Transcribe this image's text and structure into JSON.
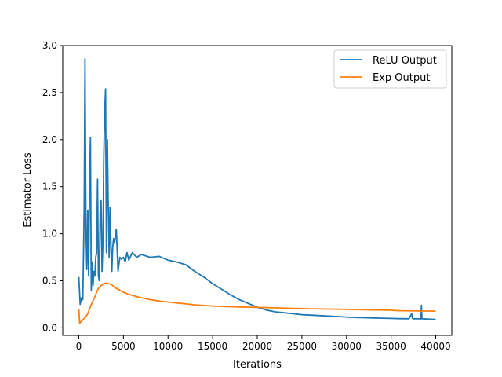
{
  "chart_data": {
    "type": "line",
    "title": "",
    "xlabel": "Iterations",
    "ylabel": "Estimator Loss",
    "xlim": [
      -1800,
      41800
    ],
    "ylim": [
      -0.08,
      3.0
    ],
    "xticks": [
      0,
      5000,
      10000,
      15000,
      20000,
      25000,
      30000,
      35000,
      40000
    ],
    "yticks": [
      0.0,
      0.5,
      1.0,
      1.5,
      2.0,
      2.5,
      3.0
    ],
    "xtick_labels": [
      "0",
      "5000",
      "10000",
      "15000",
      "20000",
      "25000",
      "30000",
      "35000",
      "40000"
    ],
    "ytick_labels": [
      "0.0",
      "0.5",
      "1.0",
      "1.5",
      "2.0",
      "2.5",
      "3.0"
    ],
    "grid": false,
    "legend": {
      "position": "top-right",
      "entries": [
        "ReLU Output",
        "Exp Output"
      ]
    },
    "series": [
      {
        "name": "ReLU Output",
        "color": "#1f77b4",
        "x": [
          0,
          150,
          300,
          450,
          600,
          700,
          800,
          900,
          1000,
          1100,
          1200,
          1300,
          1400,
          1500,
          1600,
          1700,
          1800,
          1900,
          2000,
          2100,
          2200,
          2300,
          2400,
          2500,
          2600,
          2700,
          2800,
          2900,
          3000,
          3100,
          3200,
          3300,
          3400,
          3500,
          3600,
          3700,
          3800,
          3900,
          4000,
          4200,
          4400,
          4600,
          4800,
          5000,
          5200,
          5400,
          5600,
          6000,
          6500,
          7000,
          8000,
          9000,
          10000,
          11000,
          12000,
          13000,
          14000,
          15000,
          16000,
          17000,
          18000,
          19000,
          20000,
          21000,
          22000,
          23000,
          24000,
          25000,
          26000,
          27000,
          28000,
          29000,
          30000,
          31000,
          32000,
          33000,
          34000,
          35000,
          36000,
          37000,
          37300,
          37400,
          37500,
          38000,
          38350,
          38400,
          38450,
          39000,
          40000
        ],
        "y": [
          0.54,
          0.25,
          0.32,
          0.3,
          1.25,
          2.86,
          1.05,
          0.62,
          1.25,
          0.55,
          1.5,
          2.02,
          0.4,
          0.7,
          0.45,
          0.6,
          0.55,
          0.75,
          0.8,
          1.58,
          0.55,
          0.5,
          1.25,
          1.35,
          0.6,
          0.9,
          1.8,
          2.3,
          2.54,
          0.8,
          2.0,
          1.3,
          0.75,
          1.28,
          0.9,
          0.6,
          0.85,
          0.95,
          0.9,
          1.05,
          0.6,
          0.75,
          0.73,
          0.75,
          0.7,
          0.8,
          0.72,
          0.8,
          0.75,
          0.78,
          0.75,
          0.76,
          0.72,
          0.7,
          0.67,
          0.6,
          0.54,
          0.47,
          0.41,
          0.35,
          0.3,
          0.26,
          0.22,
          0.19,
          0.17,
          0.16,
          0.15,
          0.14,
          0.135,
          0.13,
          0.125,
          0.12,
          0.115,
          0.11,
          0.108,
          0.105,
          0.103,
          0.1,
          0.098,
          0.097,
          0.15,
          0.1,
          0.097,
          0.096,
          0.095,
          0.24,
          0.096,
          0.094,
          0.09
        ]
      },
      {
        "name": "Exp Output",
        "color": "#ff7f0e",
        "x": [
          0,
          100,
          200,
          500,
          800,
          1000,
          1200,
          1500,
          1800,
          2000,
          2200,
          2500,
          2800,
          3000,
          3200,
          3500,
          3800,
          4000,
          4500,
          5000,
          5500,
          6000,
          7000,
          8000,
          9000,
          10000,
          11000,
          12000,
          13000,
          14000,
          15000,
          16000,
          17000,
          18000,
          19000,
          20000,
          22000,
          24000,
          26000,
          28000,
          30000,
          32000,
          34000,
          35000,
          36000,
          38000,
          40000
        ],
        "y": [
          0.2,
          0.05,
          0.06,
          0.09,
          0.12,
          0.15,
          0.2,
          0.27,
          0.33,
          0.38,
          0.42,
          0.45,
          0.47,
          0.475,
          0.475,
          0.465,
          0.45,
          0.43,
          0.405,
          0.38,
          0.36,
          0.345,
          0.32,
          0.3,
          0.285,
          0.275,
          0.265,
          0.255,
          0.245,
          0.238,
          0.232,
          0.228,
          0.225,
          0.222,
          0.22,
          0.218,
          0.213,
          0.207,
          0.203,
          0.2,
          0.197,
          0.193,
          0.19,
          0.187,
          0.182,
          0.18,
          0.178
        ]
      }
    ]
  }
}
